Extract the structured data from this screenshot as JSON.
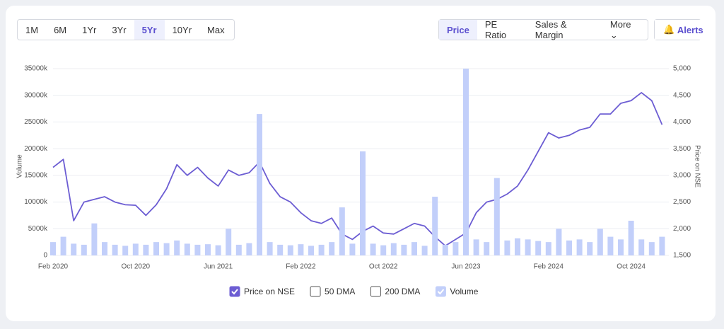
{
  "range_buttons": {
    "items": [
      "1M",
      "6M",
      "1Yr",
      "3Yr",
      "5Yr",
      "10Yr",
      "Max"
    ],
    "active": 4
  },
  "view_buttons": {
    "items": [
      "Price",
      "PE Ratio",
      "Sales & Margin",
      "More"
    ],
    "active": 0
  },
  "alerts_button": "Alerts",
  "chart_data": {
    "type": "line",
    "categories": [
      "Feb 2020",
      null,
      null,
      null,
      null,
      null,
      null,
      null,
      "Oct 2020",
      null,
      null,
      null,
      null,
      null,
      null,
      null,
      "Jun 2021",
      null,
      null,
      null,
      null,
      null,
      null,
      null,
      "Feb 2022",
      null,
      null,
      null,
      null,
      null,
      null,
      null,
      "Oct 2022",
      null,
      null,
      null,
      null,
      null,
      null,
      null,
      "Jun 2023",
      null,
      null,
      null,
      null,
      null,
      null,
      null,
      "Feb 2024",
      null,
      null,
      null,
      null,
      null,
      null,
      null,
      "Oct 2024",
      null,
      null,
      null
    ],
    "ylabel": "Volume",
    "y2label": "Price on NSE",
    "ylim": [
      0,
      35000
    ],
    "yticks": [
      0,
      {
        "value": 5000,
        "label": "5000k"
      },
      {
        "value": 10000,
        "label": "10000k"
      },
      {
        "value": 15000,
        "label": "15000k"
      },
      {
        "value": 20000,
        "label": "20000k"
      },
      {
        "value": 25000,
        "label": "25000k"
      },
      {
        "value": 30000,
        "label": "30000k"
      },
      {
        "value": 35000,
        "label": "35000k"
      }
    ],
    "y2lim": [
      1500,
      5000
    ],
    "y2ticks": [
      {
        "value": 1500,
        "label": "1,500"
      },
      {
        "value": 2000,
        "label": "2,000"
      },
      {
        "value": 2500,
        "label": "2,500"
      },
      {
        "value": 3000,
        "label": "3,000"
      },
      {
        "value": 3500,
        "label": "3,500"
      },
      {
        "value": 4000,
        "label": "4,000"
      },
      {
        "value": 4500,
        "label": "4,500"
      },
      {
        "value": 5000,
        "label": "5,000"
      }
    ],
    "grid": true,
    "series": [
      {
        "name": "Price on NSE",
        "color": "#6c5dd3",
        "axis": "y2",
        "visible": true,
        "values": [
          3150,
          3300,
          2150,
          2500,
          2550,
          2600,
          2500,
          2450,
          2440,
          2250,
          2450,
          2750,
          3200,
          3000,
          3150,
          2950,
          2800,
          3100,
          3000,
          3050,
          3250,
          2850,
          2600,
          2500,
          2300,
          2150,
          2100,
          2200,
          1900,
          1800,
          1950,
          2050,
          1920,
          1900,
          2000,
          2100,
          2050,
          1850,
          1680,
          1800,
          1920,
          2300,
          2500,
          2550,
          2650,
          2800,
          3100,
          3450,
          3800,
          3700,
          3750,
          3850,
          3900,
          4150,
          4150,
          4350,
          4400,
          4550,
          4400,
          3950
        ]
      },
      {
        "name": "50 DMA",
        "visible": false
      },
      {
        "name": "200 DMA",
        "visible": false
      },
      {
        "name": "Volume",
        "color": "#c2cffa",
        "type": "bar",
        "visible": true,
        "values": [
          2500,
          3500,
          2200,
          2000,
          6000,
          2500,
          2000,
          1800,
          2200,
          2000,
          2500,
          2300,
          2800,
          2200,
          2000,
          2100,
          1900,
          5000,
          2000,
          2300,
          26500,
          2500,
          2000,
          1900,
          2100,
          1800,
          2000,
          2500,
          9000,
          2200,
          19500,
          2200,
          1900,
          2300,
          2000,
          2500,
          1800,
          11000,
          2000,
          2500,
          35000,
          3000,
          2500,
          14500,
          2800,
          3200,
          3000,
          2700,
          2500,
          5000,
          2800,
          3000,
          2500,
          5000,
          3500,
          3000,
          6500,
          3000,
          2500,
          3500
        ]
      }
    ]
  }
}
